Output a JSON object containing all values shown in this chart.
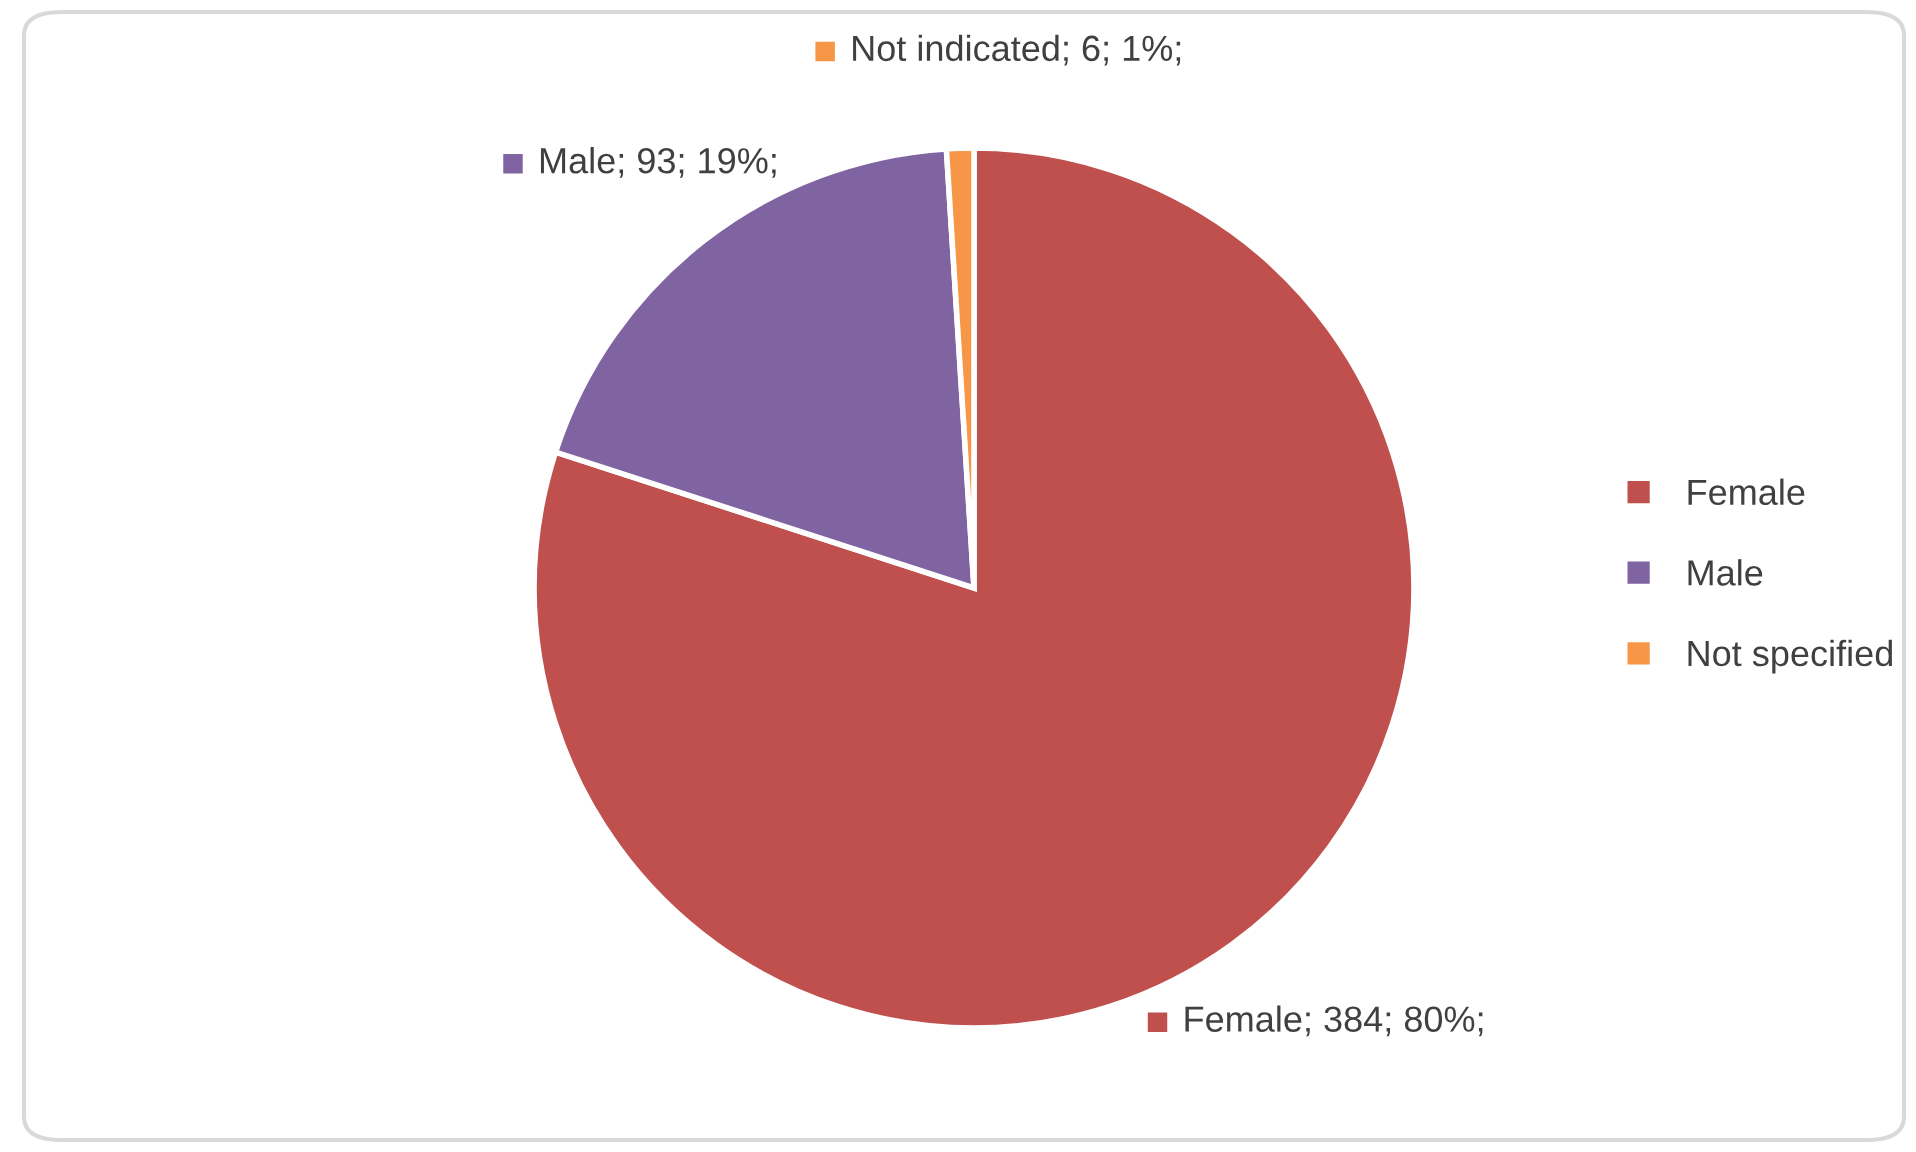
{
  "chart_data": {
    "type": "pie",
    "categories": [
      "Female",
      "Male",
      "Not specified"
    ],
    "values": [
      80,
      19,
      1
    ],
    "colors": [
      "#c0504d",
      "#8064a2",
      "#f79646"
    ],
    "value_labels": [
      "Female; 384; 80%;",
      "Male; 93; 19%;",
      "Not indicated; 6; 1%;"
    ],
    "legend": "right"
  }
}
